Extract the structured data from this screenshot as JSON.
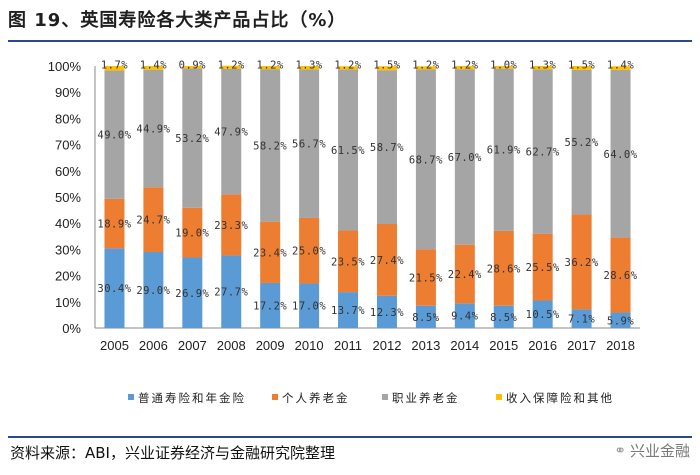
{
  "header": {
    "title": "图 19、英国寿险各大类产品占比（%）"
  },
  "footer": {
    "source": "资料来源：ABI，兴业证券经济与金融研究院整理",
    "brand": "兴业金融"
  },
  "chart_data": {
    "type": "bar",
    "stacked": true,
    "title": "英国寿险各大类产品占比（%）",
    "categories": [
      "2005",
      "2006",
      "2007",
      "2008",
      "2009",
      "2010",
      "2011",
      "2012",
      "2013",
      "2014",
      "2015",
      "2016",
      "2017",
      "2018"
    ],
    "ylim": [
      0,
      100
    ],
    "yticks": [
      "0%",
      "10%",
      "20%",
      "30%",
      "40%",
      "50%",
      "60%",
      "70%",
      "80%",
      "90%",
      "100%"
    ],
    "series": [
      {
        "name": "普通寿险和年金险",
        "color": "#5b9bd5",
        "values": [
          30.4,
          29.0,
          26.9,
          27.7,
          17.2,
          17.0,
          13.7,
          12.3,
          8.5,
          9.4,
          8.5,
          10.5,
          7.1,
          5.9
        ],
        "labels": [
          "30.4%",
          "29.0%",
          "26.9%",
          "27.7%",
          "17.2%",
          "17.0%",
          "13.7%",
          "12.3%",
          "8.5%",
          "9.4%",
          "8.5%",
          "10.5%",
          "7.1%",
          "5.9%"
        ]
      },
      {
        "name": "个人养老金",
        "color": "#ed7d31",
        "values": [
          18.9,
          24.7,
          19.0,
          23.3,
          23.4,
          25.0,
          23.5,
          27.4,
          21.5,
          22.4,
          28.6,
          25.5,
          36.2,
          28.6
        ],
        "labels": [
          "18.9%",
          "24.7%",
          "19.0%",
          "23.3%",
          "23.4%",
          "25.0%",
          "23.5%",
          "27.4%",
          "21.5%",
          "22.4%",
          "28.6%",
          "25.5%",
          "36.2%",
          "28.6%"
        ]
      },
      {
        "name": "职业养老金",
        "color": "#a5a5a5",
        "values": [
          49.0,
          44.9,
          53.2,
          47.9,
          58.2,
          56.7,
          61.5,
          58.7,
          68.7,
          67.0,
          61.9,
          62.7,
          55.2,
          64.0
        ],
        "labels": [
          "49.0%",
          "44.9%",
          "53.2%",
          "47.9%",
          "58.2%",
          "56.7%",
          "61.5%",
          "58.7%",
          "68.7%",
          "67.0%",
          "61.9%",
          "62.7%",
          "55.2%",
          "64.0%"
        ]
      },
      {
        "name": "收入保障险和其他",
        "color": "#ffc000",
        "values": [
          1.7,
          1.4,
          0.9,
          1.2,
          1.2,
          1.3,
          1.2,
          1.5,
          1.2,
          1.2,
          1.0,
          1.3,
          1.5,
          1.4
        ],
        "labels": [
          "1.7%",
          "1.4%",
          "0.9%",
          "1.2%",
          "1.2%",
          "1.3%",
          "1.2%",
          "1.5%",
          "1.2%",
          "1.2%",
          "1.0%",
          "1.3%",
          "1.5%",
          "1.4%"
        ]
      }
    ]
  }
}
